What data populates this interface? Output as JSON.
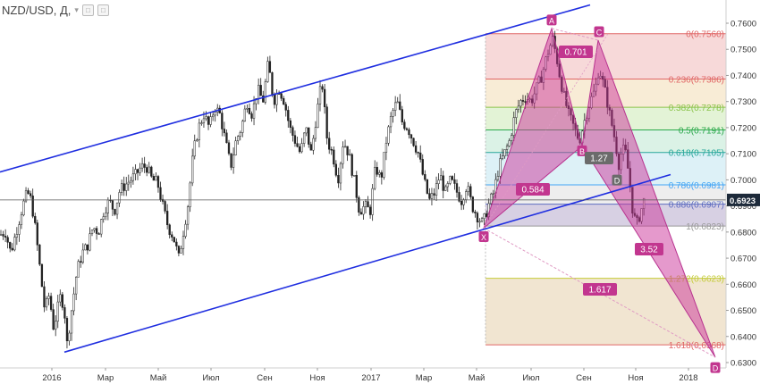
{
  "header": {
    "symbol": "NZD/USD, Д,",
    "caret_icon": "chevron-down-icon",
    "btn_icons": [
      "settings-square-icon",
      "close-square-icon"
    ]
  },
  "colors": {
    "candle": "#222222",
    "channel": "#1f2ee0",
    "pattern_fill": "#cc3399",
    "pattern_stroke": "#b8338f",
    "label_bg": "#c2368f",
    "grey_label": "#6b6b6b",
    "price_line": "#555555",
    "price_tag": "#1d2a3a"
  },
  "chart_data": {
    "type": "candlestick",
    "title": "NZD/USD, Д",
    "ylim": [
      0.626,
      0.764
    ],
    "y_ticks": [
      "0.7600",
      "0.7500",
      "0.7400",
      "0.7300",
      "0.7200",
      "0.7100",
      "0.7000",
      "0.6900",
      "0.6800",
      "0.6700",
      "0.6600",
      "0.6500",
      "0.6400",
      "0.6300"
    ],
    "x_ticks": [
      "2016",
      "Мар",
      "Май",
      "Июл",
      "Сен",
      "Ноя",
      "2017",
      "Мар",
      "Май",
      "Июл",
      "Сен",
      "Ноя",
      "2018"
    ],
    "current_price": "0.6923",
    "price_path": [
      [
        0,
        0.679
      ],
      [
        6,
        0.68
      ],
      [
        12,
        0.672
      ],
      [
        18,
        0.68
      ],
      [
        24,
        0.688
      ],
      [
        28,
        0.693
      ],
      [
        31,
        0.695
      ],
      [
        35,
        0.692
      ],
      [
        40,
        0.68
      ],
      [
        45,
        0.665
      ],
      [
        50,
        0.65
      ],
      [
        55,
        0.656
      ],
      [
        60,
        0.643
      ],
      [
        64,
        0.65
      ],
      [
        68,
        0.656
      ],
      [
        72,
        0.65
      ],
      [
        75,
        0.637
      ],
      [
        80,
        0.65
      ],
      [
        86,
        0.665
      ],
      [
        92,
        0.672
      ],
      [
        98,
        0.675
      ],
      [
        104,
        0.682
      ],
      [
        110,
        0.68
      ],
      [
        116,
        0.688
      ],
      [
        122,
        0.692
      ],
      [
        128,
        0.688
      ],
      [
        134,
        0.696
      ],
      [
        140,
        0.698
      ],
      [
        146,
        0.7
      ],
      [
        152,
        0.702
      ],
      [
        158,
        0.705
      ],
      [
        164,
        0.705
      ],
      [
        170,
        0.7
      ],
      [
        176,
        0.699
      ],
      [
        182,
        0.69
      ],
      [
        188,
        0.682
      ],
      [
        194,
        0.678
      ],
      [
        200,
        0.67
      ],
      [
        205,
        0.68
      ],
      [
        210,
        0.69
      ],
      [
        216,
        0.71
      ],
      [
        222,
        0.72
      ],
      [
        228,
        0.725
      ],
      [
        234,
        0.72
      ],
      [
        240,
        0.728
      ],
      [
        246,
        0.725
      ],
      [
        252,
        0.715
      ],
      [
        258,
        0.705
      ],
      [
        264,
        0.715
      ],
      [
        270,
        0.72
      ],
      [
        276,
        0.73
      ],
      [
        282,
        0.725
      ],
      [
        288,
        0.735
      ],
      [
        294,
        0.73
      ],
      [
        300,
        0.745
      ],
      [
        306,
        0.73
      ],
      [
        312,
        0.735
      ],
      [
        318,
        0.73
      ],
      [
        324,
        0.72
      ],
      [
        330,
        0.715
      ],
      [
        336,
        0.71
      ],
      [
        342,
        0.72
      ],
      [
        348,
        0.71
      ],
      [
        354,
        0.725
      ],
      [
        360,
        0.738
      ],
      [
        366,
        0.715
      ],
      [
        372,
        0.71
      ],
      [
        378,
        0.7
      ],
      [
        384,
        0.715
      ],
      [
        390,
        0.71
      ],
      [
        396,
        0.7
      ],
      [
        402,
        0.688
      ],
      [
        408,
        0.69
      ],
      [
        414,
        0.688
      ],
      [
        420,
        0.705
      ],
      [
        426,
        0.7
      ],
      [
        432,
        0.715
      ],
      [
        438,
        0.725
      ],
      [
        444,
        0.73
      ],
      [
        450,
        0.722
      ],
      [
        456,
        0.72
      ],
      [
        462,
        0.715
      ],
      [
        468,
        0.71
      ],
      [
        474,
        0.7
      ],
      [
        480,
        0.692
      ],
      [
        486,
        0.695
      ],
      [
        492,
        0.702
      ],
      [
        498,
        0.695
      ],
      [
        504,
        0.7
      ],
      [
        510,
        0.696
      ],
      [
        516,
        0.692
      ],
      [
        522,
        0.698
      ],
      [
        528,
        0.69
      ],
      [
        534,
        0.686
      ],
      [
        540,
        0.683
      ],
      [
        546,
        0.69
      ],
      [
        552,
        0.695
      ],
      [
        558,
        0.705
      ],
      [
        564,
        0.71
      ],
      [
        570,
        0.715
      ],
      [
        576,
        0.725
      ],
      [
        582,
        0.73
      ],
      [
        588,
        0.732
      ],
      [
        594,
        0.73
      ],
      [
        600,
        0.735
      ],
      [
        606,
        0.74
      ],
      [
        612,
        0.748
      ],
      [
        618,
        0.754
      ],
      [
        622,
        0.748
      ],
      [
        626,
        0.74
      ],
      [
        630,
        0.733
      ],
      [
        636,
        0.725
      ],
      [
        642,
        0.72
      ],
      [
        648,
        0.715
      ],
      [
        654,
        0.723
      ],
      [
        660,
        0.73
      ],
      [
        666,
        0.735
      ],
      [
        670,
        0.743
      ],
      [
        676,
        0.735
      ],
      [
        682,
        0.725
      ],
      [
        688,
        0.715
      ],
      [
        692,
        0.706
      ],
      [
        696,
        0.712
      ],
      [
        700,
        0.71
      ],
      [
        704,
        0.7
      ],
      [
        708,
        0.687
      ],
      [
        712,
        0.683
      ],
      [
        716,
        0.687
      ],
      [
        720,
        0.692
      ],
      [
        723,
        0.6923
      ]
    ],
    "channel_upper": {
      "x": [
        0,
        660
      ],
      "y": [
        0.703,
        0.767
      ]
    },
    "channel_lower": {
      "x": [
        72,
        750
      ],
      "y": [
        0.634,
        0.702
      ]
    },
    "fib_zone": {
      "x_start_label": "Май",
      "levels": [
        {
          "ratio": "0",
          "value": "0.7560",
          "price": 0.756,
          "color": "#e06666",
          "fill": "#f4cccc"
        },
        {
          "ratio": "0.236",
          "value": "0.7386",
          "price": 0.7386,
          "color": "#e06666",
          "fill": "#f6e5c8"
        },
        {
          "ratio": "0.382",
          "value": "0.7278",
          "price": 0.7278,
          "color": "#8bc34a",
          "fill": "#d9efc8"
        },
        {
          "ratio": "0.5",
          "value": "0.7191",
          "price": 0.7191,
          "color": "#2aa84a",
          "fill": "#cfeedd"
        },
        {
          "ratio": "0.618",
          "value": "0.7105",
          "price": 0.7105,
          "color": "#26a69a",
          "fill": "#d2ecf4"
        },
        {
          "ratio": "0.786",
          "value": "0.6981",
          "price": 0.6981,
          "color": "#42a5f5",
          "fill": "#e8e8e8"
        },
        {
          "ratio": "0.886",
          "value": "0.6907",
          "price": 0.6907,
          "color": "#5c6bc0",
          "fill": "#c9c0da"
        },
        {
          "ratio": "1",
          "value": "0.6823",
          "price": 0.6823,
          "color": "#999999",
          "fill": "#ffffff"
        },
        {
          "ratio": "1.272",
          "value": "0.6623",
          "price": 0.6623,
          "color": "#c5cc3a",
          "fill": "#ecdcc2"
        },
        {
          "ratio": "1.618",
          "value": "0.6368",
          "price": 0.6368,
          "color": "#e06666",
          "fill": "#ffffff"
        }
      ]
    },
    "harmonic_pattern": {
      "points": [
        {
          "name": "X",
          "price": 0.6815
        },
        {
          "name": "A",
          "price": 0.758
        },
        {
          "name": "B",
          "price": 0.713
        },
        {
          "name": "C",
          "price": 0.7535
        },
        {
          "name": "D",
          "price": 0.7025
        },
        {
          "name": "D",
          "price": 0.632
        }
      ],
      "ratios": [
        "0.701",
        "0.584",
        "1.27",
        "3.52",
        "1.617"
      ]
    }
  }
}
